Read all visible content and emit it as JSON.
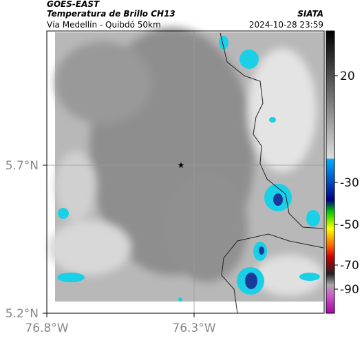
{
  "header": {
    "satellite": "GOES-EAST",
    "title": "Temperatura de Brillo CH13",
    "subtitle": "Vía Medellín - Quibdó 50km",
    "source": "SIATA",
    "datetime": "2024-10-28 23:59"
  },
  "map": {
    "lat_ticks": [
      "5.7°N",
      "5.2°N"
    ],
    "lon_ticks": [
      "76.8°W",
      "76.3°W"
    ]
  },
  "colorbar": {
    "ticks": [
      "20",
      "-30",
      "-50",
      "-70",
      "-90"
    ]
  }
}
